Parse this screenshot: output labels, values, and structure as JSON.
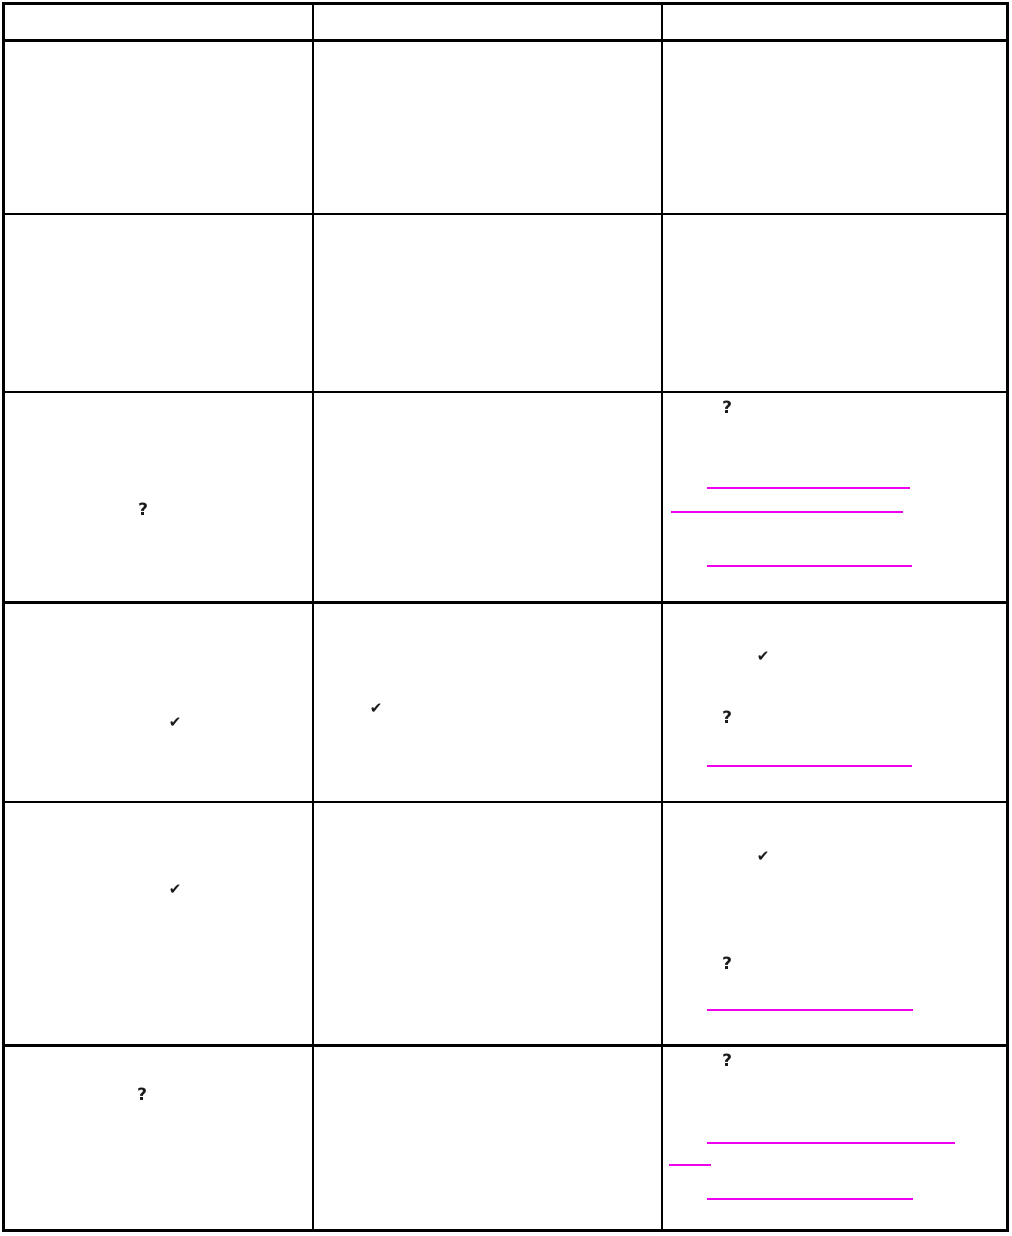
{
  "page": {
    "kind": "document-table-page",
    "background_color": "#ffffff"
  },
  "colors": {
    "table_border": "#000000",
    "glyph": "#1a1a1a",
    "link_underline": "#ee00ee"
  },
  "glyphs": {
    "question_mark": "?",
    "checkmark": "✔"
  },
  "table": {
    "column_count": 3,
    "row_count": 7,
    "header": {
      "cells": [
        "",
        "",
        ""
      ]
    },
    "rows": [
      {
        "col1": [],
        "col2": [],
        "col3": []
      },
      {
        "col1": [],
        "col2": [],
        "col3": []
      },
      {
        "col1": [
          "question_mark"
        ],
        "col2": [],
        "col3": [
          "question_mark",
          "link_underline",
          "link_underline_wrapped",
          "link_underline"
        ]
      },
      {
        "col1": [
          "checkmark"
        ],
        "col2": [
          "checkmark"
        ],
        "col3": [
          "checkmark",
          "question_mark",
          "link_underline"
        ]
      },
      {
        "col1": [
          "checkmark"
        ],
        "col2": [],
        "col3": [
          "checkmark",
          "question_mark",
          "link_underline"
        ]
      },
      {
        "col1": [
          "question_mark"
        ],
        "col2": [],
        "col3": [
          "question_mark",
          "link_underline",
          "link_underline_wrapped",
          "link_underline"
        ]
      }
    ]
  }
}
